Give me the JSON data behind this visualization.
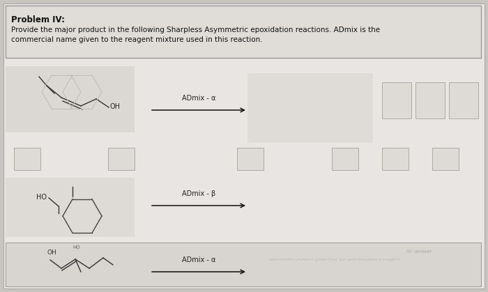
{
  "bg_outer": "#c8c4c0",
  "bg_page": "#e8e5e2",
  "bg_header": "#e0ddd9",
  "bg_answer_box": "#d8d4d0",
  "header_border": "#999999",
  "arrow_color": "#111111",
  "text_color": "#111111",
  "reagent_color": "#222222",
  "watermark_color": "#d0ccc8",
  "box_color": "#dedbd7",
  "box_edge": "#aaaaaa",
  "title": "Problem IV:",
  "desc1": "Provide the major product in the following Sharpless Asymmetric epoxidation reactions. ADmix is the",
  "desc2": "commercial name given to the reagent mixture used in this reaction.",
  "reagent1": "ADmix - α",
  "reagent2": "ADmix - β",
  "reagent3": "ADmix - α",
  "watermark_text1": "IV: answer",
  "watermark_text2": "epoxidation product given that ad- and sharpless’s reagent"
}
